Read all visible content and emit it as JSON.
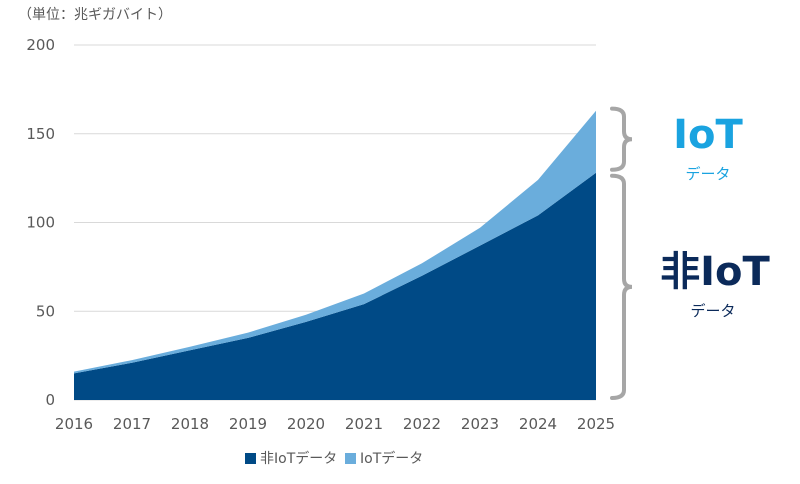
{
  "chart_data": {
    "type": "area",
    "stacked": true,
    "unit_label": "（単位：兆ギガバイト）",
    "categories": [
      "2016",
      "2017",
      "2018",
      "2019",
      "2020",
      "2021",
      "2022",
      "2023",
      "2024",
      "2025"
    ],
    "ylim": [
      0,
      200
    ],
    "yticks": [
      0,
      50,
      100,
      150,
      200
    ],
    "grid": true,
    "legend_position": "bottom",
    "series": [
      {
        "name": "非IoTデータ",
        "color": "#004a86",
        "values": [
          15,
          21,
          28,
          35,
          44,
          54,
          70,
          87,
          104,
          128
        ]
      },
      {
        "name": "IoTデータ",
        "color": "#6aaddc",
        "values": [
          1,
          1.5,
          2,
          3,
          4,
          6,
          7,
          10,
          20,
          35
        ]
      }
    ],
    "annotations": [
      {
        "big": "IoT",
        "sub": "データ",
        "color": "#1aa3e0"
      },
      {
        "big": "非IoT",
        "sub": "データ",
        "color": "#0b2a5a"
      }
    ],
    "bracket_color": "#a6a6a6"
  }
}
